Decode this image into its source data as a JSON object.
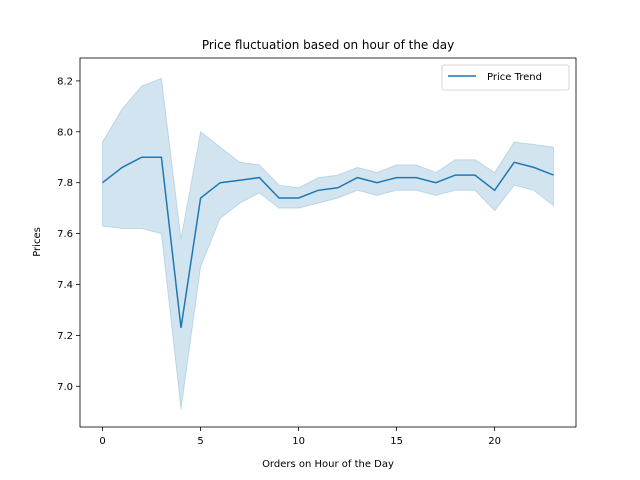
{
  "chart_data": {
    "type": "line",
    "title": "Price fluctuation based on hour of the day",
    "xlabel": "Orders on Hour of the Day",
    "ylabel": "Prices",
    "xlim": [
      -1.15,
      24.15
    ],
    "ylim": [
      6.84,
      8.29
    ],
    "xticks": [
      0,
      5,
      10,
      15,
      20
    ],
    "yticks": [
      7.0,
      7.2,
      7.4,
      7.6,
      7.8,
      8.0,
      8.2
    ],
    "ytick_labels": [
      "7.0",
      "7.2",
      "7.4",
      "7.6",
      "7.8",
      "8.0",
      "8.2"
    ],
    "grid": false,
    "legend": {
      "position": "top-right",
      "entries": [
        "Price Trend"
      ]
    },
    "colors": {
      "line": "#1f77b4",
      "band": "#1f77b4"
    },
    "series": [
      {
        "name": "Price Trend",
        "x": [
          0,
          1,
          2,
          3,
          4,
          5,
          6,
          7,
          8,
          9,
          10,
          11,
          12,
          13,
          14,
          15,
          16,
          17,
          18,
          19,
          20,
          21,
          22,
          23
        ],
        "y": [
          7.8,
          7.86,
          7.9,
          7.9,
          7.23,
          7.74,
          7.8,
          7.81,
          7.82,
          7.74,
          7.74,
          7.77,
          7.78,
          7.82,
          7.8,
          7.82,
          7.82,
          7.8,
          7.83,
          7.83,
          7.77,
          7.88,
          7.86,
          7.83
        ],
        "ci_low": [
          7.63,
          7.62,
          7.62,
          7.6,
          6.91,
          7.47,
          7.66,
          7.72,
          7.76,
          7.7,
          7.7,
          7.72,
          7.74,
          7.77,
          7.75,
          7.77,
          7.77,
          7.75,
          7.77,
          7.77,
          7.69,
          7.79,
          7.77,
          7.71
        ],
        "ci_high": [
          7.96,
          8.09,
          8.18,
          8.21,
          7.58,
          8.0,
          7.94,
          7.88,
          7.87,
          7.79,
          7.78,
          7.82,
          7.83,
          7.86,
          7.84,
          7.87,
          7.87,
          7.84,
          7.89,
          7.89,
          7.84,
          7.96,
          7.95,
          7.94
        ]
      }
    ]
  }
}
